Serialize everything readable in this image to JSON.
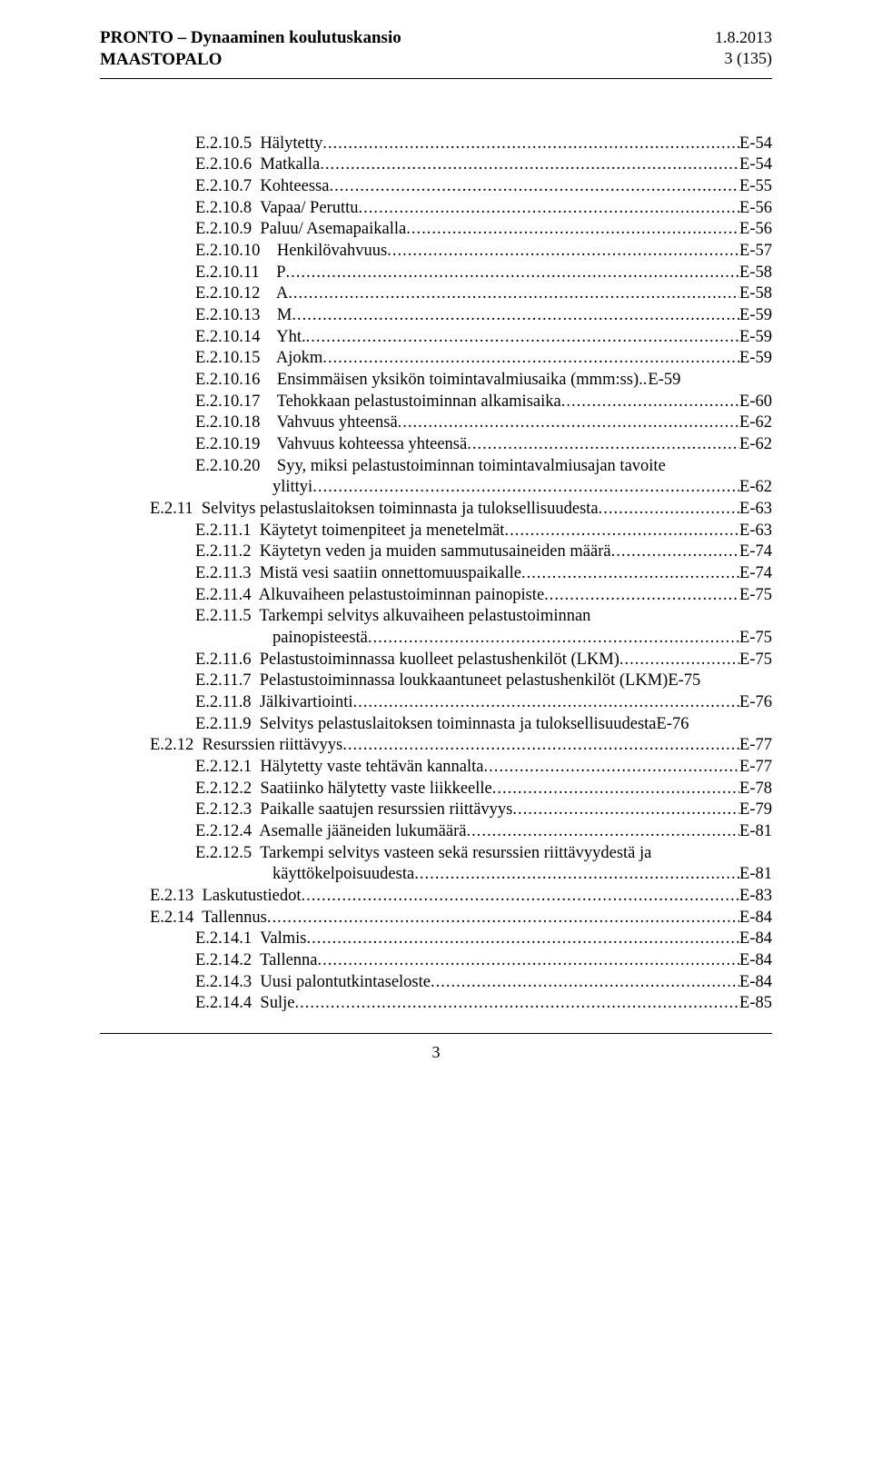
{
  "header": {
    "title_line1": "PRONTO – Dynaaminen koulutuskansio",
    "title_line2": "MAASTOPALO",
    "date": "1.8.2013",
    "page_of": "3 (135)"
  },
  "footer": {
    "page": "3"
  },
  "leader_char": ".",
  "toc": [
    {
      "level": 2,
      "label": "E.2.10.5  Hälytetty",
      "page": "E-54"
    },
    {
      "level": 2,
      "label": "E.2.10.6  Matkalla",
      "page": "E-54"
    },
    {
      "level": 2,
      "label": "E.2.10.7  Kohteessa",
      "page": "E-55"
    },
    {
      "level": 2,
      "label": "E.2.10.8  Vapaa/ Peruttu",
      "page": "E-56"
    },
    {
      "level": 2,
      "label": "E.2.10.9  Paluu/ Asemapaikalla",
      "page": "E-56"
    },
    {
      "level": 2,
      "label": "E.2.10.10    Henkilövahvuus",
      "page": "E-57"
    },
    {
      "level": 2,
      "label": "E.2.10.11    P",
      "page": "E-58"
    },
    {
      "level": 2,
      "label": "E.2.10.12    A",
      "page": "E-58"
    },
    {
      "level": 2,
      "label": "E.2.10.13    M",
      "page": "E-59"
    },
    {
      "level": 2,
      "label": "E.2.10.14    Yht.",
      "page": "E-59"
    },
    {
      "level": 2,
      "label": "E.2.10.15    Ajokm",
      "page": "E-59"
    },
    {
      "level": 2,
      "label": "E.2.10.16    Ensimmäisen yksikön toimintavalmiusaika (mmm:ss).",
      "page": "E-59",
      "tight": true
    },
    {
      "level": 2,
      "label": "E.2.10.17    Tehokkaan pelastustoiminnan alkamisaika",
      "page": "E-60"
    },
    {
      "level": 2,
      "label": "E.2.10.18    Vahvuus yhteensä",
      "page": "E-62"
    },
    {
      "level": 2,
      "label": "E.2.10.19    Vahvuus kohteessa yhteensä",
      "page": "E-62"
    },
    {
      "level": 2,
      "label": "E.2.10.20    Syy, miksi pelastustoiminnan toimintavalmiusajan tavoite",
      "cont": "ylittyi",
      "page": "E-62"
    },
    {
      "level": 1,
      "label": "E.2.11  Selvitys pelastuslaitoksen toiminnasta ja tuloksellisuudesta",
      "page": "E-63"
    },
    {
      "level": 2,
      "label": "E.2.11.1  Käytetyt toimenpiteet ja menetelmät",
      "page": "E-63"
    },
    {
      "level": 2,
      "label": "E.2.11.2  Käytetyn veden ja muiden sammutusaineiden määrä",
      "page": "E-74"
    },
    {
      "level": 2,
      "label": "E.2.11.3  Mistä vesi saatiin onnettomuuspaikalle",
      "page": "E-74"
    },
    {
      "level": 2,
      "label": "E.2.11.4  Alkuvaiheen pelastustoiminnan painopiste",
      "page": "E-75"
    },
    {
      "level": 2,
      "label": "E.2.11.5  Tarkempi selvitys alkuvaiheen pelastustoiminnan",
      "cont": "painopisteestä",
      "page": "E-75"
    },
    {
      "level": 2,
      "label": "E.2.11.6  Pelastustoiminnassa kuolleet pelastushenkilöt (LKM)",
      "page": "E-75"
    },
    {
      "level": 2,
      "label": "E.2.11.7  Pelastustoiminnassa loukkaantuneet pelastushenkilöt (LKM)",
      "page": "E-75",
      "no_leader": true
    },
    {
      "level": 2,
      "label": "E.2.11.8  Jälkivartiointi",
      "page": "E-76"
    },
    {
      "level": 2,
      "label": "E.2.11.9  Selvitys pelastuslaitoksen toiminnasta ja tuloksellisuudesta",
      "page": "E-76",
      "no_leader": true
    },
    {
      "level": 1,
      "label": "E.2.12  Resurssien riittävyys",
      "page": "E-77"
    },
    {
      "level": 2,
      "label": "E.2.12.1  Hälytetty vaste tehtävän kannalta",
      "page": "E-77"
    },
    {
      "level": 2,
      "label": "E.2.12.2  Saatiinko hälytetty vaste liikkeelle",
      "page": "E-78"
    },
    {
      "level": 2,
      "label": "E.2.12.3  Paikalle saatujen resurssien riittävyys",
      "page": "E-79"
    },
    {
      "level": 2,
      "label": "E.2.12.4  Asemalle jääneiden lukumäärä",
      "page": "E-81"
    },
    {
      "level": 2,
      "label": "E.2.12.5  Tarkempi selvitys vasteen sekä resurssien riittävyydestä ja",
      "cont": "käyttökelpoisuudesta",
      "page": "E-81"
    },
    {
      "level": 1,
      "label": "E.2.13  Laskutustiedot",
      "page": "E-83"
    },
    {
      "level": 1,
      "label": "E.2.14  Tallennus",
      "page": "E-84"
    },
    {
      "level": 2,
      "label": "E.2.14.1  Valmis",
      "page": "E-84"
    },
    {
      "level": 2,
      "label": "E.2.14.2  Tallenna",
      "page": "E-84"
    },
    {
      "level": 2,
      "label": "E.2.14.3  Uusi palontutkintaseloste",
      "page": "E-84"
    },
    {
      "level": 2,
      "label": "E.2.14.4  Sulje",
      "page": "E-85"
    }
  ]
}
